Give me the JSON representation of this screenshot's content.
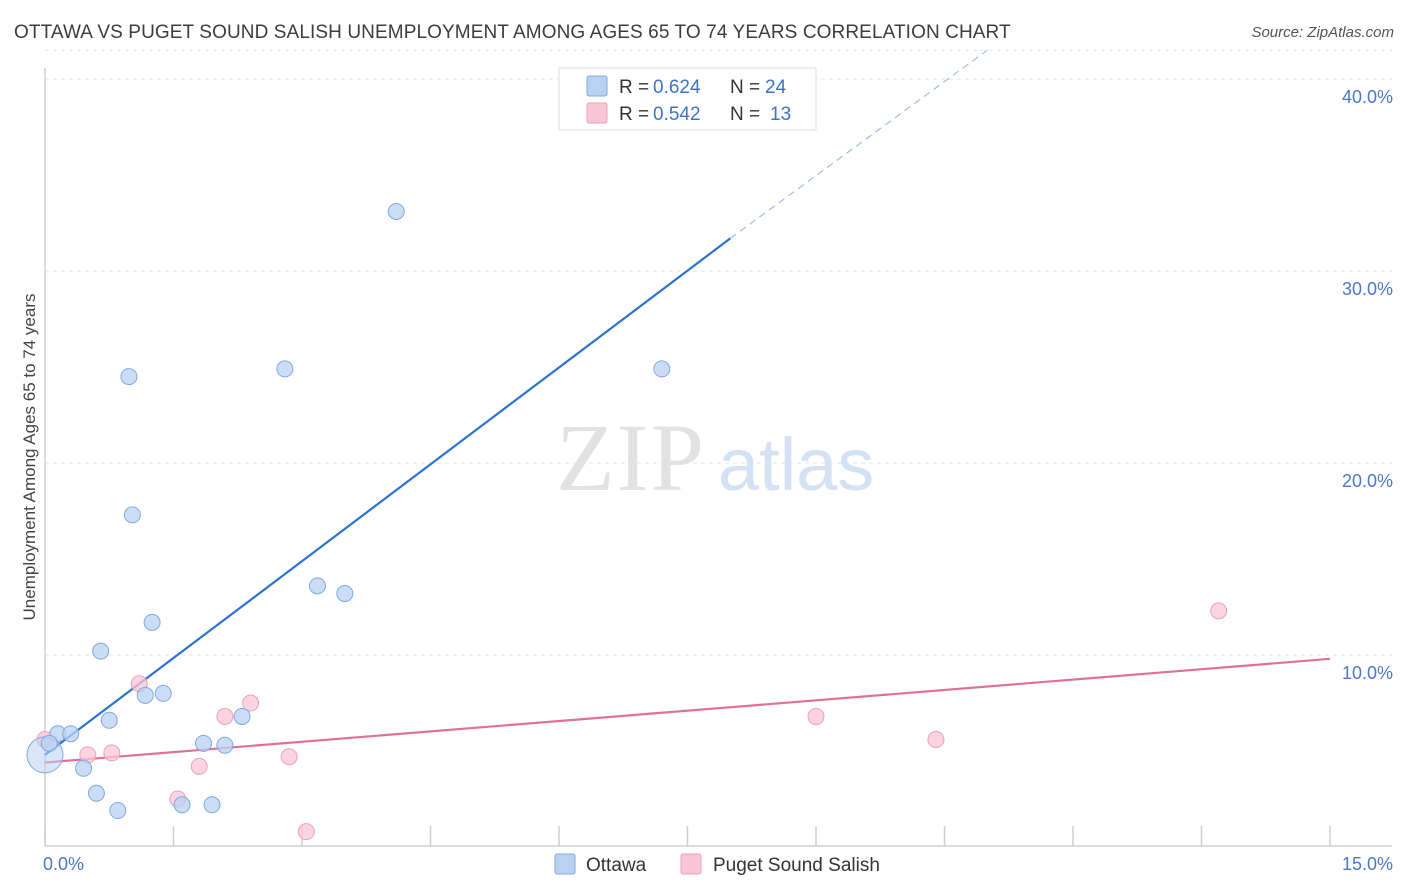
{
  "header": {
    "title": "OTTAWA VS PUGET SOUND SALISH UNEMPLOYMENT AMONG AGES 65 TO 74 YEARS CORRELATION CHART",
    "source": "Source: ZipAtlas.com"
  },
  "watermark": {
    "zip": "ZIP",
    "atlas": "atlas"
  },
  "colors": {
    "ottawa_fill": "#b9d2f2",
    "ottawa_stroke": "#7ea9e3",
    "ottawa_line": "#2b72d3",
    "puget_fill": "#f8c5d5",
    "puget_stroke": "#ef9fb8",
    "puget_line": "#e0709a",
    "grid": "#e3e3e3",
    "axis_text": "#4a78c8"
  },
  "legend": {
    "rows": [
      {
        "r_label": "R = ",
        "r_value": "0.624",
        "n_label": "N = ",
        "n_value": "24"
      },
      {
        "r_label": "R = ",
        "r_value": "0.542",
        "n_label": "N = ",
        "n_value": "13"
      }
    ]
  },
  "chart_data": {
    "type": "scatter",
    "title": "OTTAWA VS PUGET SOUND SALISH UNEMPLOYMENT AMONG AGES 65 TO 74 YEARS CORRELATION CHART",
    "xlabel": "",
    "ylabel": "Unemployment Among Ages 65 to 74 years",
    "xlim": [
      0,
      15
    ],
    "ylim": [
      0,
      42
    ],
    "x_tick_labels": [
      "0.0%",
      "15.0%"
    ],
    "y_tick_labels": [
      "10.0%",
      "20.0%",
      "30.0%",
      "40.0%"
    ],
    "y_ticks": [
      10,
      20,
      30,
      40
    ],
    "x_ticks": [
      0,
      1.5,
      3,
      4.5,
      6,
      7.5,
      9,
      10.5,
      12,
      13.5,
      15
    ],
    "series": [
      {
        "name": "Ottawa",
        "points": [
          [
            0.0,
            4.8
          ],
          [
            0.15,
            5.9
          ],
          [
            0.3,
            5.9
          ],
          [
            0.45,
            4.1
          ],
          [
            0.6,
            2.8
          ],
          [
            0.65,
            10.2
          ],
          [
            0.75,
            6.6
          ],
          [
            0.85,
            1.9
          ],
          [
            0.98,
            24.5
          ],
          [
            1.02,
            17.3
          ],
          [
            1.17,
            7.9
          ],
          [
            1.25,
            11.7
          ],
          [
            1.38,
            8.0
          ],
          [
            1.6,
            2.2
          ],
          [
            1.85,
            5.4
          ],
          [
            1.95,
            2.2
          ],
          [
            2.1,
            5.3
          ],
          [
            2.3,
            6.8
          ],
          [
            2.8,
            24.9
          ],
          [
            3.18,
            13.6
          ],
          [
            3.5,
            13.2
          ],
          [
            4.1,
            33.1
          ],
          [
            7.2,
            24.9
          ],
          [
            0.05,
            5.4
          ]
        ],
        "trend": {
          "x": [
            0.0,
            8.0
          ],
          "y": [
            4.8,
            31.7
          ]
        },
        "trend_extension": {
          "x": [
            8.0,
            11.0
          ],
          "y": [
            31.7,
            41.5
          ]
        }
      },
      {
        "name": "Puget Sound Salish",
        "points": [
          [
            0.0,
            5.6
          ],
          [
            0.5,
            4.8
          ],
          [
            0.78,
            4.9
          ],
          [
            1.1,
            8.5
          ],
          [
            1.55,
            2.5
          ],
          [
            1.8,
            4.2
          ],
          [
            2.1,
            6.8
          ],
          [
            2.4,
            7.5
          ],
          [
            2.85,
            4.7
          ],
          [
            3.05,
            0.8
          ],
          [
            9.0,
            6.8
          ],
          [
            10.4,
            5.6
          ],
          [
            13.7,
            12.3
          ]
        ],
        "trend": {
          "x": [
            0.0,
            15.0
          ],
          "y": [
            4.4,
            9.8
          ]
        }
      }
    ],
    "legend_entries": [
      "Ottawa",
      "Puget Sound Salish"
    ]
  }
}
